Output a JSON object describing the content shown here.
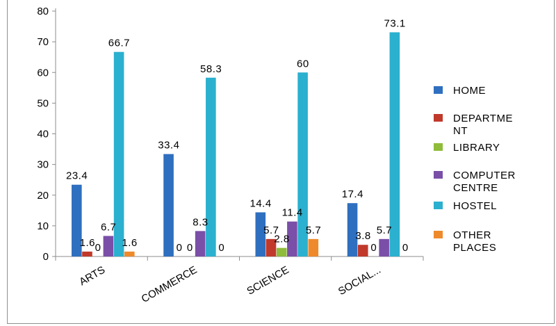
{
  "chart_data": {
    "type": "bar",
    "categories": [
      "ARTS",
      "COMMERCE",
      "SCIENCE",
      "SOCIAL..."
    ],
    "series": [
      {
        "name": "HOME",
        "name_lines": [
          "HOME"
        ],
        "color": "#2f6fbf",
        "values": [
          23.4,
          33.4,
          14.4,
          17.4
        ],
        "labels": [
          "23.4",
          "33.4",
          "14.4",
          "17.4"
        ]
      },
      {
        "name": "DEPARTMENT",
        "name_lines": [
          "DEPARTME",
          "NT"
        ],
        "color": "#c0392b",
        "values": [
          1.6,
          0,
          5.7,
          3.8
        ],
        "labels": [
          "1.6",
          "0",
          "5.7",
          "3.8"
        ]
      },
      {
        "name": "LIBRARY",
        "name_lines": [
          "LIBRARY"
        ],
        "color": "#8fbc3a",
        "values": [
          0,
          0,
          2.8,
          0
        ],
        "labels": [
          "0",
          "0",
          "2.8",
          "0"
        ]
      },
      {
        "name": "COMPUTER CENTRE",
        "name_lines": [
          "COMPUTER",
          "CENTRE"
        ],
        "color": "#7a4fa8",
        "values": [
          6.7,
          8.3,
          11.4,
          5.7
        ],
        "labels": [
          "6.7",
          "8.3",
          "11.4",
          "5.7"
        ]
      },
      {
        "name": "HOSTEL",
        "name_lines": [
          "HOSTEL"
        ],
        "color": "#2bb0cf",
        "values": [
          66.7,
          58.3,
          60,
          73.1
        ],
        "labels": [
          "66.7",
          "58.3",
          "60",
          "73.1"
        ]
      },
      {
        "name": "OTHER PLACES",
        "name_lines": [
          "OTHER",
          "PLACES"
        ],
        "color": "#ef8a2c",
        "values": [
          1.6,
          0,
          5.7,
          0
        ],
        "labels": [
          "1.6",
          "0",
          "5.7",
          "0"
        ]
      }
    ],
    "y_ticks": [
      "0",
      "10",
      "20",
      "30",
      "40",
      "50",
      "60",
      "70",
      "80"
    ],
    "ylim": [
      0,
      80
    ],
    "grid": false,
    "legend_position": "right",
    "title": "",
    "xlabel": "",
    "ylabel": ""
  }
}
